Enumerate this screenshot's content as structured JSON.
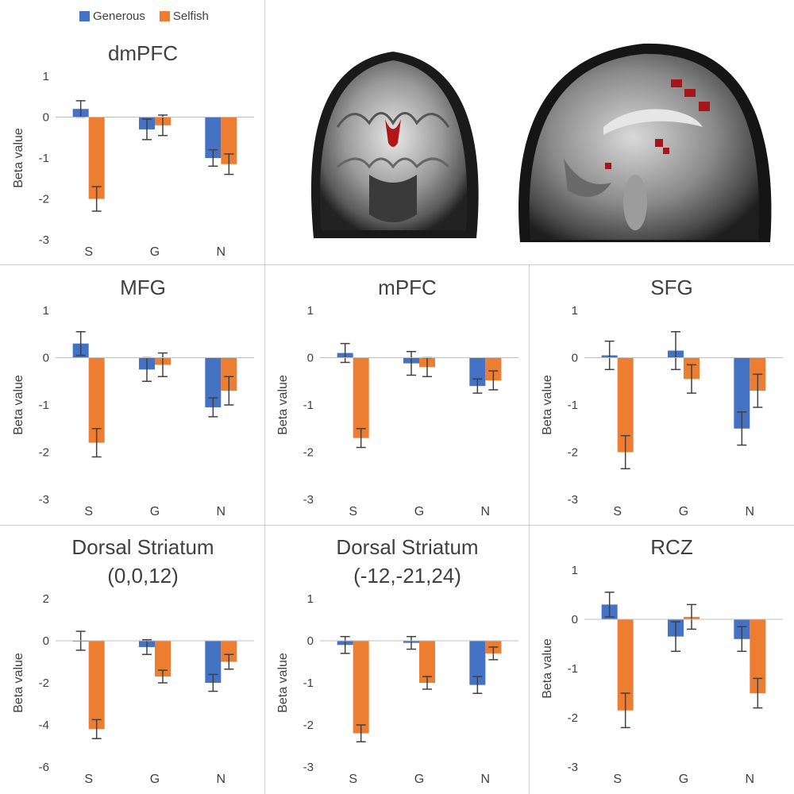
{
  "legend": {
    "items": [
      {
        "label": "Generous",
        "color": "#4472C4"
      },
      {
        "label": "Selfish",
        "color": "#ED7D31"
      }
    ]
  },
  "chart_data": [
    {
      "type": "bar",
      "title": "dmPFC",
      "ylabel": "Beta value",
      "ylim": [
        -3,
        1
      ],
      "yticks": [
        1,
        0,
        -1,
        -2,
        -3
      ],
      "categories": [
        "S",
        "G",
        "N"
      ],
      "series": [
        {
          "name": "Generous",
          "values": [
            0.2,
            -0.3,
            -1.0
          ],
          "errors": [
            0.2,
            0.25,
            0.2
          ]
        },
        {
          "name": "Selfish",
          "values": [
            -2.0,
            -0.2,
            -1.15
          ],
          "errors": [
            0.3,
            0.25,
            0.25
          ]
        }
      ]
    },
    {
      "type": "bar",
      "title": "MFG",
      "ylabel": "Beta value",
      "ylim": [
        -3,
        1
      ],
      "yticks": [
        1,
        0,
        -1,
        -2,
        -3
      ],
      "categories": [
        "S",
        "G",
        "N"
      ],
      "series": [
        {
          "name": "Generous",
          "values": [
            0.3,
            -0.25,
            -1.05
          ],
          "errors": [
            0.25,
            0.25,
            0.2
          ]
        },
        {
          "name": "Selfish",
          "values": [
            -1.8,
            -0.15,
            -0.7
          ],
          "errors": [
            0.3,
            0.25,
            0.3
          ]
        }
      ]
    },
    {
      "type": "bar",
      "title": "mPFC",
      "ylabel": "Beta value",
      "ylim": [
        -3,
        1
      ],
      "yticks": [
        1,
        0,
        -1,
        -2,
        -3
      ],
      "categories": [
        "S",
        "G",
        "N"
      ],
      "series": [
        {
          "name": "Generous",
          "values": [
            0.1,
            -0.12,
            -0.6
          ],
          "errors": [
            0.2,
            0.25,
            0.15
          ]
        },
        {
          "name": "Selfish",
          "values": [
            -1.7,
            -0.2,
            -0.48
          ],
          "errors": [
            0.2,
            0.2,
            0.2
          ]
        }
      ]
    },
    {
      "type": "bar",
      "title": "SFG",
      "ylabel": "Beta value",
      "ylim": [
        -3,
        1
      ],
      "yticks": [
        1,
        0,
        -1,
        -2,
        -3
      ],
      "categories": [
        "S",
        "G",
        "N"
      ],
      "series": [
        {
          "name": "Generous",
          "values": [
            0.05,
            0.15,
            -1.5
          ],
          "errors": [
            0.3,
            0.4,
            0.35
          ]
        },
        {
          "name": "Selfish",
          "values": [
            -2.0,
            -0.45,
            -0.7
          ],
          "errors": [
            0.35,
            0.3,
            0.35
          ]
        }
      ]
    },
    {
      "type": "bar",
      "title": "Dorsal Striatum (0,0,12)",
      "title_lines": [
        "Dorsal Striatum",
        "(0,0,12)"
      ],
      "ylabel": "Beta value",
      "ylim": [
        -6,
        2
      ],
      "yticks": [
        2,
        0,
        -2,
        -4,
        -6
      ],
      "categories": [
        "S",
        "G",
        "N"
      ],
      "series": [
        {
          "name": "Generous",
          "values": [
            0.0,
            -0.3,
            -2.0
          ],
          "errors": [
            0.45,
            0.35,
            0.4
          ]
        },
        {
          "name": "Selfish",
          "values": [
            -4.2,
            -1.7,
            -1.0
          ],
          "errors": [
            0.45,
            0.3,
            0.35
          ]
        }
      ]
    },
    {
      "type": "bar",
      "title": "Dorsal Striatum (-12,-21,24)",
      "title_lines": [
        "Dorsal Striatum",
        "(-12,-21,24)"
      ],
      "ylabel": "Beta value",
      "ylim": [
        -3,
        1
      ],
      "yticks": [
        1,
        0,
        -1,
        -2,
        -3
      ],
      "categories": [
        "S",
        "G",
        "N"
      ],
      "series": [
        {
          "name": "Generous",
          "values": [
            -0.1,
            -0.05,
            -1.05
          ],
          "errors": [
            0.2,
            0.15,
            0.2
          ]
        },
        {
          "name": "Selfish",
          "values": [
            -2.2,
            -1.0,
            -0.3
          ],
          "errors": [
            0.2,
            0.15,
            0.15
          ]
        }
      ]
    },
    {
      "type": "bar",
      "title": "RCZ",
      "ylabel": "Beta value",
      "ylim": [
        -3,
        1
      ],
      "yticks": [
        1,
        0,
        -1,
        -2,
        -3
      ],
      "categories": [
        "S",
        "G",
        "N"
      ],
      "series": [
        {
          "name": "Generous",
          "values": [
            0.3,
            -0.35,
            -0.4
          ],
          "errors": [
            0.25,
            0.3,
            0.25
          ]
        },
        {
          "name": "Selfish",
          "values": [
            -1.85,
            0.05,
            -1.5
          ],
          "errors": [
            0.35,
            0.25,
            0.3
          ]
        }
      ]
    }
  ]
}
